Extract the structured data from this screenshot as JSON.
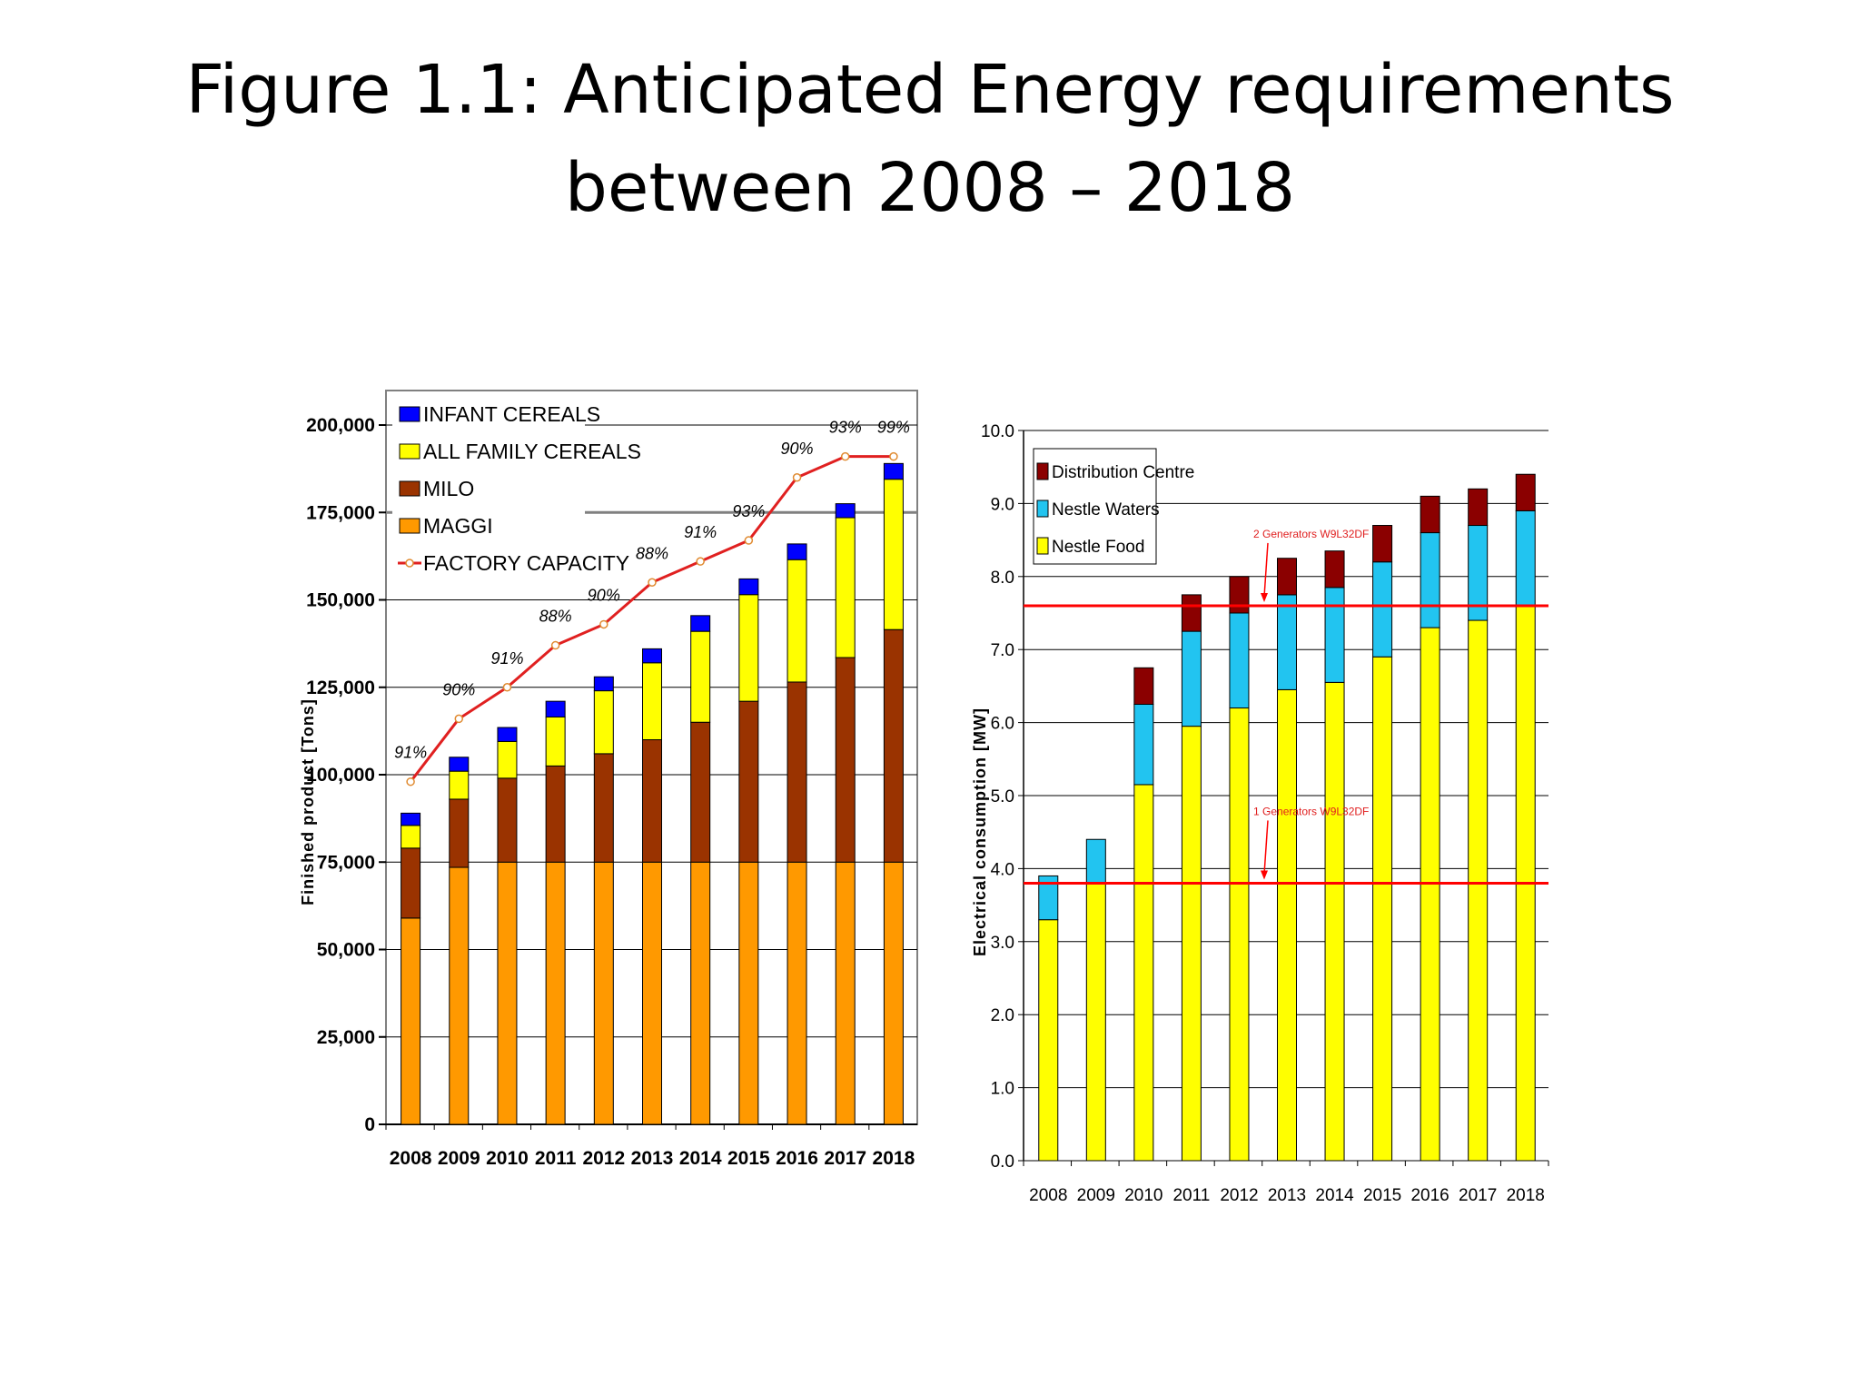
{
  "slide": {
    "title_line1": "Figure  1.1:  Anticipated  Energy  requirements",
    "title_line2": "between  2008 – 2018"
  },
  "chart_data": [
    {
      "type": "bar",
      "stacked": true,
      "title": "",
      "xlabel": "",
      "ylabel": "Finished product [Tons]",
      "ylim": [
        0,
        210000
      ],
      "y_ticks": [
        "0",
        "25,000",
        "50,000",
        "75,000",
        "100,000",
        "125,000",
        "150,000",
        "175,000",
        "200,000"
      ],
      "y_tick_values": [
        0,
        25000,
        50000,
        75000,
        100000,
        125000,
        150000,
        175000,
        200000
      ],
      "grid": true,
      "legend_position": "top-left",
      "categories": [
        "2008",
        "2009",
        "2010",
        "2011",
        "2012",
        "2013",
        "2014",
        "2015",
        "2016",
        "2017",
        "2018"
      ],
      "series": [
        {
          "name": "MAGGI",
          "color": "#ff9900",
          "values": [
            59000,
            73500,
            75000,
            75000,
            75000,
            75000,
            75000,
            75000,
            75000,
            75000,
            75000
          ]
        },
        {
          "name": "MILO",
          "color": "#9a3300",
          "values": [
            20000,
            19500,
            24000,
            27500,
            31000,
            35000,
            40000,
            46000,
            51500,
            58500,
            66500
          ]
        },
        {
          "name": "ALL FAMILY CEREALS",
          "color": "#ffff00",
          "values": [
            6500,
            8000,
            10500,
            14000,
            18000,
            22000,
            26000,
            30500,
            35000,
            40000,
            43000
          ]
        },
        {
          "name": "INFANT CEREALS",
          "color": "#0000ff",
          "values": [
            3500,
            4000,
            4000,
            4500,
            4000,
            4000,
            4500,
            4500,
            4500,
            4000,
            4500
          ]
        }
      ],
      "line_series": {
        "name": "FACTORY CAPACITY",
        "color": "#e02020",
        "values": [
          98000,
          116000,
          125000,
          137000,
          143000,
          155000,
          161000,
          167000,
          185000,
          191000,
          191000
        ],
        "labels": [
          "91%",
          "90%",
          "91%",
          "88%",
          "90%",
          "88%",
          "91%",
          "93%",
          "90%",
          "93%",
          "99%"
        ]
      },
      "reference_line": {
        "value": 175000,
        "color": "#808080"
      }
    },
    {
      "type": "bar",
      "stacked": true,
      "title": "",
      "xlabel": "",
      "ylabel": "Electrical consumption [MW]",
      "ylim": [
        0,
        10
      ],
      "y_ticks": [
        "0.0",
        "1.0",
        "2.0",
        "3.0",
        "4.0",
        "5.0",
        "6.0",
        "7.0",
        "8.0",
        "9.0",
        "10.0"
      ],
      "y_tick_values": [
        0,
        1,
        2,
        3,
        4,
        5,
        6,
        7,
        8,
        9,
        10
      ],
      "grid": true,
      "legend_position": "top-left",
      "categories": [
        "2008",
        "2009",
        "2010",
        "2011",
        "2012",
        "2013",
        "2014",
        "2015",
        "2016",
        "2017",
        "2018"
      ],
      "series": [
        {
          "name": "Nestle Food",
          "color": "#ffff00",
          "values": [
            3.3,
            3.8,
            5.15,
            5.95,
            6.2,
            6.45,
            6.55,
            6.9,
            7.3,
            7.4,
            7.6
          ]
        },
        {
          "name": "Nestle Waters",
          "color": "#22c4f0",
          "values": [
            0.6,
            0.6,
            1.1,
            1.3,
            1.3,
            1.3,
            1.3,
            1.3,
            1.3,
            1.3,
            1.3
          ]
        },
        {
          "name": "Distribution Centre",
          "color": "#8b0000",
          "values": [
            0,
            0,
            0.5,
            0.5,
            0.5,
            0.5,
            0.5,
            0.5,
            0.5,
            0.5,
            0.5
          ]
        }
      ],
      "reference_lines": [
        {
          "value": 7.6,
          "label": "2 Generators W9L32DF",
          "color": "#ff0000"
        },
        {
          "value": 3.8,
          "label": "1 Generators W9L32DF",
          "color": "#ff0000"
        }
      ]
    }
  ]
}
